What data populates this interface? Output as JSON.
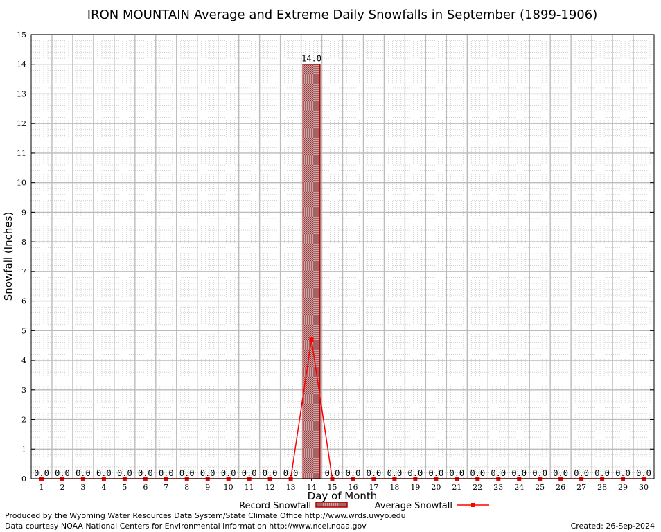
{
  "footer": {
    "produced_by": "Produced by the Wyoming Water Resources Data System/State Climate Office http://www.wrds.uwyo.edu",
    "data_courtesy": "Data courtesy NOAA National Centers for Environmental Information http://www.ncei.noaa.gov",
    "created": "Created: 26-Sep-2024"
  },
  "colors": {
    "record_fill": "#c9a9a9",
    "record_stroke": "#b00000",
    "average_line": "#ff0000",
    "grid_major": "#bbbbbb",
    "grid_minor": "#bbbbbb"
  },
  "chart_data": {
    "type": "bar",
    "title": "IRON MOUNTAIN Average and Extreme Daily Snowfalls in September (1899-1906)",
    "xlabel": "Day of Month",
    "ylabel": "Snowfall (Inches)",
    "ylim": [
      0,
      15
    ],
    "y_ticks": [
      0,
      1,
      2,
      3,
      4,
      5,
      6,
      7,
      8,
      9,
      10,
      11,
      12,
      13,
      14,
      15
    ],
    "categories": [
      "1",
      "2",
      "3",
      "4",
      "5",
      "6",
      "7",
      "8",
      "9",
      "10",
      "11",
      "12",
      "13",
      "14",
      "15",
      "16",
      "17",
      "18",
      "19",
      "20",
      "21",
      "22",
      "23",
      "24",
      "25",
      "26",
      "27",
      "28",
      "29",
      "30"
    ],
    "grid": true,
    "legend_position": "bottom-center",
    "series": [
      {
        "name": "Record Snowfall",
        "kind": "bar",
        "values": [
          0,
          0,
          0,
          0,
          0,
          0,
          0,
          0,
          0,
          0,
          0,
          0,
          0,
          14,
          0,
          0,
          0,
          0,
          0,
          0,
          0,
          0,
          0,
          0,
          0,
          0,
          0,
          0,
          0,
          0
        ],
        "labels": [
          "0.0",
          "0.0",
          "0.0",
          "0.0",
          "0.0",
          "0.0",
          "0.0",
          "0.0",
          "0.0",
          "0.0",
          "0.0",
          "0.0",
          "0.0",
          "14.0",
          "0.0",
          "0.0",
          "0.0",
          "0.0",
          "0.0",
          "0.0",
          "0.0",
          "0.0",
          "0.0",
          "0.0",
          "0.0",
          "0.0",
          "0.0",
          "0.0",
          "0.0",
          "0.0"
        ]
      },
      {
        "name": "Average Snowfall",
        "kind": "line",
        "values": [
          0,
          0,
          0,
          0,
          0,
          0,
          0,
          0,
          0,
          0,
          0,
          0,
          0,
          4.7,
          0,
          0,
          0,
          0,
          0,
          0,
          0,
          0,
          0,
          0,
          0,
          0,
          0,
          0,
          0,
          0
        ]
      }
    ]
  }
}
